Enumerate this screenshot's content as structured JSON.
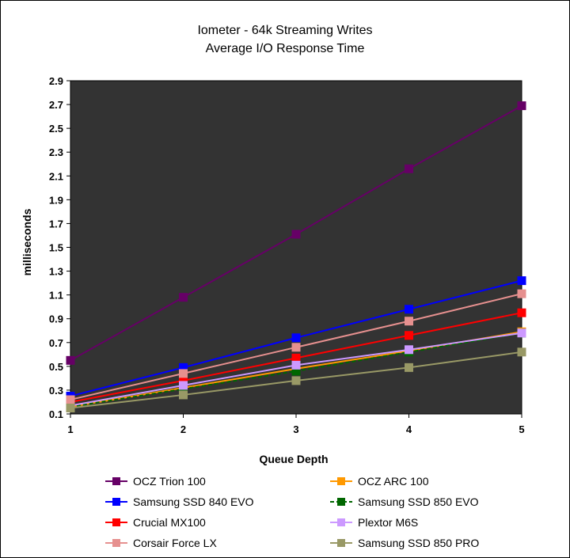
{
  "chart_data": {
    "type": "line",
    "title": "Iometer - 64k Streaming Writes",
    "subtitle": "Average I/O Response Time",
    "xlabel": "Queue Depth",
    "ylabel": "milliseconds",
    "x": [
      1,
      2,
      3,
      4,
      5
    ],
    "x_ticks": [
      "1",
      "2",
      "3",
      "4",
      "5"
    ],
    "ylim": [
      0.1,
      2.9
    ],
    "y_ticks": [
      "0.1",
      "0.3",
      "0.5",
      "0.7",
      "0.9",
      "1.1",
      "1.3",
      "1.5",
      "1.7",
      "1.9",
      "2.1",
      "2.3",
      "2.5",
      "2.7",
      "2.9"
    ],
    "plot_background": "#333333",
    "grid": false,
    "legend_position": "bottom",
    "series": [
      {
        "name": "OCZ Trion 100",
        "color": "#660066",
        "values": [
          0.55,
          1.08,
          1.61,
          2.16,
          2.69
        ]
      },
      {
        "name": "OCZ ARC 100",
        "color": "#FF9900",
        "values": [
          0.16,
          0.32,
          0.48,
          0.63,
          0.79
        ]
      },
      {
        "name": "Samsung SSD 840 EVO",
        "color": "#0000FF",
        "values": [
          0.25,
          0.49,
          0.74,
          0.98,
          1.22
        ]
      },
      {
        "name": "Samsung SSD 850 EVO",
        "color": "#006600",
        "values": [
          0.16,
          0.31,
          0.46,
          0.62,
          0.78
        ],
        "dashed": true
      },
      {
        "name": "Crucial MX100",
        "color": "#FF0000",
        "values": [
          0.2,
          0.38,
          0.57,
          0.76,
          0.95
        ]
      },
      {
        "name": "Plextor M6S",
        "color": "#CC99FF",
        "values": [
          0.17,
          0.34,
          0.51,
          0.64,
          0.78
        ]
      },
      {
        "name": "Corsair Force LX",
        "color": "#E6908F",
        "values": [
          0.22,
          0.44,
          0.66,
          0.88,
          1.11
        ]
      },
      {
        "name": "Samsung SSD 850 PRO",
        "color": "#999966",
        "values": [
          0.15,
          0.26,
          0.38,
          0.49,
          0.62
        ]
      }
    ]
  }
}
